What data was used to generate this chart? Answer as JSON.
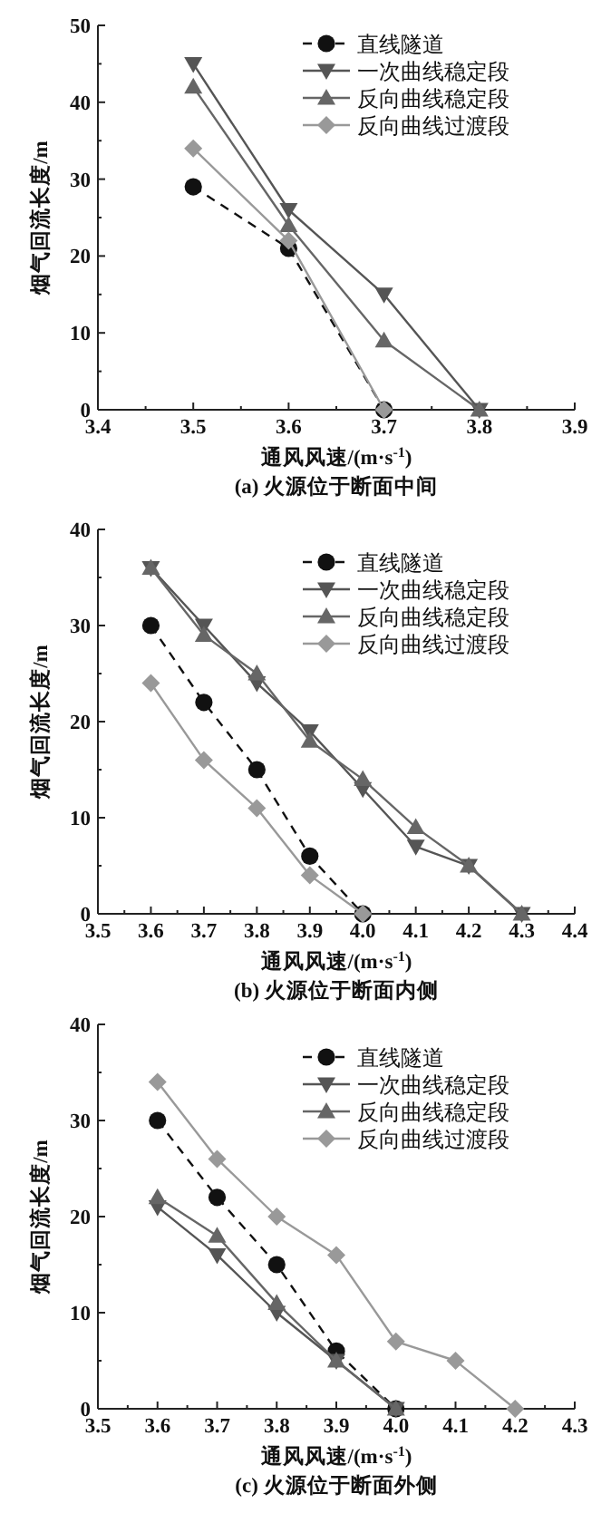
{
  "chart_data": [
    {
      "type": "line",
      "title": "(a) 火源位于断面中间",
      "xlabel": "通风风速/(m·s$^{-1}$)",
      "ylabel": "烟气回流长度/m",
      "xlim": [
        3.4,
        3.9
      ],
      "xticks": [
        3.4,
        3.5,
        3.6,
        3.7,
        3.8,
        3.9
      ],
      "ylim": [
        0,
        50
      ],
      "yticks": [
        0,
        10,
        20,
        30,
        40,
        50
      ],
      "legend": "top right",
      "grid": false,
      "series": [
        {
          "name": "直线隧道",
          "color": "#111111",
          "marker": "circle",
          "line_style": "dashed",
          "x": [
            3.5,
            3.6,
            3.7
          ],
          "values": [
            29,
            21,
            0
          ]
        },
        {
          "name": "一次曲线稳定段",
          "color": "#555555",
          "marker": "triangle_down",
          "line_style": "solid",
          "x": [
            3.5,
            3.6,
            3.7,
            3.8
          ],
          "values": [
            45,
            26,
            15,
            0
          ]
        },
        {
          "name": "反向曲线稳定段",
          "color": "#666666",
          "marker": "triangle",
          "line_style": "solid",
          "x": [
            3.5,
            3.6,
            3.7,
            3.8
          ],
          "values": [
            42,
            24,
            9,
            0
          ]
        },
        {
          "name": "反向曲线过渡段",
          "color": "#999999",
          "marker": "diamond",
          "line_style": "solid",
          "x": [
            3.5,
            3.6,
            3.7
          ],
          "values": [
            34,
            22,
            0
          ]
        }
      ]
    },
    {
      "type": "line",
      "title": "(b) 火源位于断面内侧",
      "xlabel": "通风风速/(m·s$^{-1}$)",
      "ylabel": "烟气回流长度/m",
      "xlim": [
        3.5,
        4.4
      ],
      "xticks": [
        3.5,
        3.6,
        3.7,
        3.8,
        3.9,
        {
          "value": 4.0,
          "label": "4.0"
        },
        4.1,
        4.2,
        4.3,
        4.4
      ],
      "ylim": [
        0,
        40
      ],
      "yticks": [
        0,
        10,
        20,
        30,
        40
      ],
      "legend": "top right",
      "grid": false,
      "series": [
        {
          "name": "直线隧道",
          "color": "#111111",
          "marker": "circle",
          "line_style": "dashed",
          "x": [
            3.6,
            3.7,
            3.8,
            3.9,
            4.0
          ],
          "values": [
            30,
            22,
            15,
            6,
            0
          ]
        },
        {
          "name": "一次曲线稳定段",
          "color": "#555555",
          "marker": "triangle_down",
          "line_style": "solid",
          "x": [
            3.6,
            3.7,
            3.8,
            3.9,
            4.0,
            4.1,
            4.2,
            4.3
          ],
          "values": [
            36,
            30,
            24,
            19,
            13,
            7,
            5,
            0
          ]
        },
        {
          "name": "反向曲线稳定段",
          "color": "#666666",
          "marker": "triangle",
          "line_style": "solid",
          "x": [
            3.6,
            3.7,
            3.8,
            3.9,
            4.0,
            4.1,
            4.2,
            4.3
          ],
          "values": [
            36,
            29,
            25,
            18,
            14,
            9,
            5,
            0
          ]
        },
        {
          "name": "反向曲线过渡段",
          "color": "#999999",
          "marker": "diamond",
          "line_style": "solid",
          "x": [
            3.6,
            3.7,
            3.8,
            3.9,
            4.0
          ],
          "values": [
            24,
            16,
            11,
            4,
            0
          ]
        }
      ]
    },
    {
      "type": "line",
      "title": "(c) 火源位于断面外侧",
      "xlabel": "通风风速/(m·s$^{-1}$)",
      "ylabel": "烟气回流长度/m",
      "xlim": [
        3.5,
        4.3
      ],
      "xticks": [
        3.5,
        3.6,
        3.7,
        3.8,
        3.9,
        {
          "value": 4.0,
          "label": "4.0"
        },
        4.1,
        4.2,
        4.3
      ],
      "ylim": [
        0,
        40
      ],
      "yticks": [
        0,
        10,
        20,
        30,
        40
      ],
      "legend": "top right",
      "grid": false,
      "series": [
        {
          "name": "直线隧道",
          "color": "#111111",
          "marker": "circle",
          "line_style": "dashed",
          "x": [
            3.6,
            3.7,
            3.8,
            3.9,
            4.0
          ],
          "values": [
            30,
            22,
            15,
            6,
            0
          ]
        },
        {
          "name": "一次曲线稳定段",
          "color": "#555555",
          "marker": "triangle_down",
          "line_style": "solid",
          "x": [
            3.6,
            3.7,
            3.8,
            3.9,
            4.0
          ],
          "values": [
            21,
            16,
            10,
            5,
            0
          ]
        },
        {
          "name": "反向曲线稳定段",
          "color": "#666666",
          "marker": "triangle",
          "line_style": "solid",
          "x": [
            3.6,
            3.7,
            3.8,
            3.9,
            4.0
          ],
          "values": [
            22,
            18,
            11,
            5,
            0
          ]
        },
        {
          "name": "反向曲线过渡段",
          "color": "#999999",
          "marker": "diamond",
          "line_style": "solid",
          "x": [
            3.6,
            3.7,
            3.8,
            3.9,
            4.0,
            4.1,
            4.2
          ],
          "values": [
            34,
            26,
            20,
            16,
            7,
            5,
            0
          ]
        }
      ]
    }
  ]
}
